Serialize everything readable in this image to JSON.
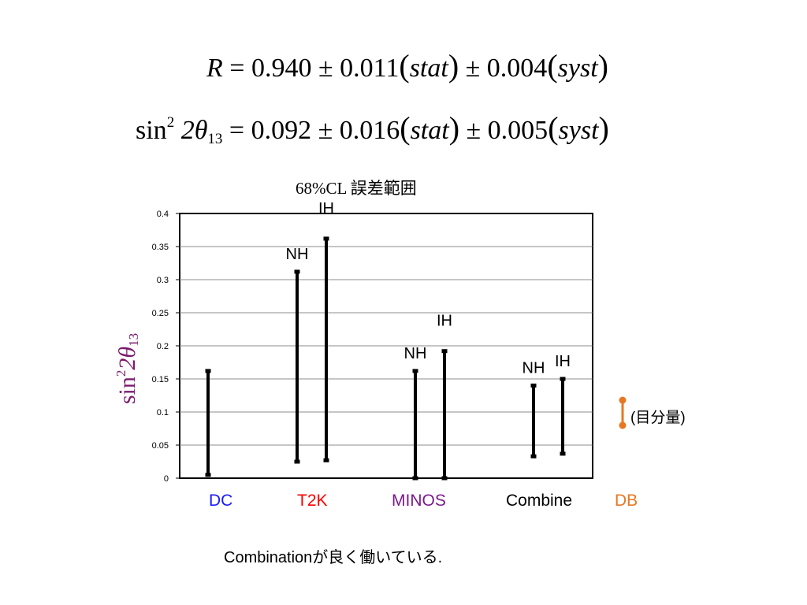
{
  "equations": {
    "r_lhs": "R",
    "r_equals": "= 0.940 ± 0.011",
    "r_stat": "stat",
    "r_mid": "± 0.004",
    "r_syst": "syst",
    "s_sin": "sin",
    "s_sup": "2",
    "s_theta": "2θ",
    "s_sub": "13",
    "s_equals": "= 0.092 ± 0.016",
    "s_stat": "stat",
    "s_mid": "± 0.005",
    "s_syst": "syst"
  },
  "colors": {
    "dc": "#1a1aff",
    "t2k": "#ff0000",
    "minos": "#7a1a8c",
    "combine": "#000000",
    "db": "#e87722",
    "ylabel": "#7a1a6e"
  },
  "chart_data": {
    "type": "error-range",
    "title": "68%CL 誤差範囲",
    "ylabel_parts": {
      "sin": "sin",
      "sup": "2",
      "theta": "2θ",
      "sub": "13"
    },
    "ylim": [
      0,
      0.4
    ],
    "yticks": [
      "0",
      "0.05",
      "0.1",
      "0.15",
      "0.2",
      "0.25",
      "0.3",
      "0.35",
      "0.4"
    ],
    "grid": true,
    "categories": [
      "DC",
      "T2K",
      "MINOS",
      "Combine",
      "DB"
    ],
    "series": [
      {
        "group": "DC",
        "label": "",
        "low": 0.005,
        "high": 0.162
      },
      {
        "group": "T2K",
        "label": "NH",
        "low": 0.025,
        "high": 0.312
      },
      {
        "group": "T2K",
        "label": "IH",
        "low": 0.027,
        "high": 0.362
      },
      {
        "group": "MINOS",
        "label": "NH",
        "low": 0.0,
        "high": 0.162
      },
      {
        "group": "MINOS",
        "label": "IH",
        "low": 0.0,
        "high": 0.192
      },
      {
        "group": "Combine",
        "label": "NH",
        "low": 0.033,
        "high": 0.14
      },
      {
        "group": "Combine",
        "label": "IH",
        "low": 0.037,
        "high": 0.15
      }
    ],
    "legend": {
      "label": "(目分量)",
      "placement": "right"
    }
  },
  "footer": "Combinationが良く働いている."
}
